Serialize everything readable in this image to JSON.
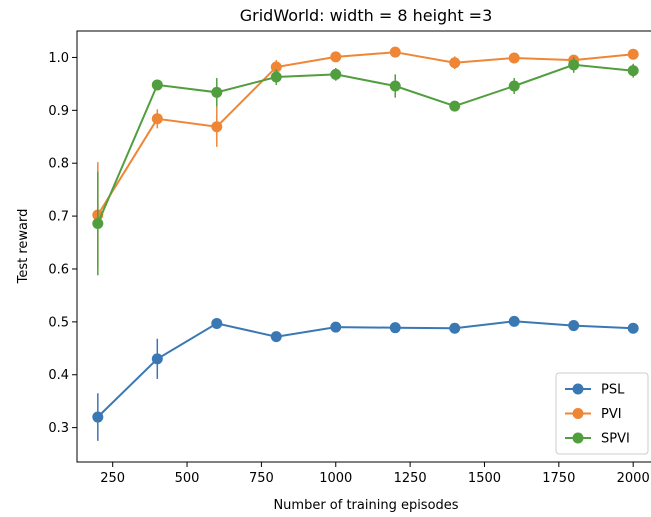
{
  "chart_data": {
    "type": "line",
    "title": "GridWorld: width = 8 height =3",
    "xlabel": "Number of training episodes",
    "ylabel": "Test reward",
    "xlim": [
      130,
      2070
    ],
    "ylim": [
      0.235,
      1.05
    ],
    "xticks": [
      250,
      500,
      750,
      1000,
      1250,
      1500,
      1750,
      2000
    ],
    "xtick_labels": [
      "250",
      "500",
      "750",
      "1000",
      "1250",
      "1500",
      "1750",
      "2000"
    ],
    "yticks": [
      0.3,
      0.4,
      0.5,
      0.6,
      0.7,
      0.8,
      0.9,
      1.0
    ],
    "ytick_labels": [
      "0.3",
      "0.4",
      "0.5",
      "0.6",
      "0.7",
      "0.8",
      "0.9",
      "1.0"
    ],
    "grid": false,
    "legend_position": "bottom-right",
    "x": [
      200,
      400,
      600,
      800,
      1000,
      1200,
      1400,
      1600,
      1800,
      2000
    ],
    "series": [
      {
        "name": "PSL",
        "color": "#3a78b4",
        "values": [
          0.32,
          0.43,
          0.497,
          0.472,
          0.49,
          0.489,
          0.488,
          0.501,
          0.493,
          0.488
        ],
        "errors": [
          0.045,
          0.038,
          0.007,
          0.007,
          0.008,
          0.005,
          0.005,
          0.007,
          0.006,
          0.006
        ]
      },
      {
        "name": "PVI",
        "color": "#ef8636",
        "values": [
          0.702,
          0.884,
          0.869,
          0.982,
          1.001,
          1.01,
          0.99,
          0.999,
          0.995,
          1.006
        ],
        "errors": [
          0.1,
          0.018,
          0.038,
          0.013,
          0.006,
          0.006,
          0.012,
          0.007,
          0.006,
          0.01
        ]
      },
      {
        "name": "SPVI",
        "color": "#519e3e",
        "values": [
          0.686,
          0.948,
          0.934,
          0.963,
          0.968,
          0.946,
          0.908,
          0.946,
          0.986,
          0.975
        ],
        "errors": [
          0.098,
          0.01,
          0.027,
          0.015,
          0.012,
          0.022,
          0.006,
          0.015,
          0.015,
          0.013
        ]
      }
    ]
  }
}
